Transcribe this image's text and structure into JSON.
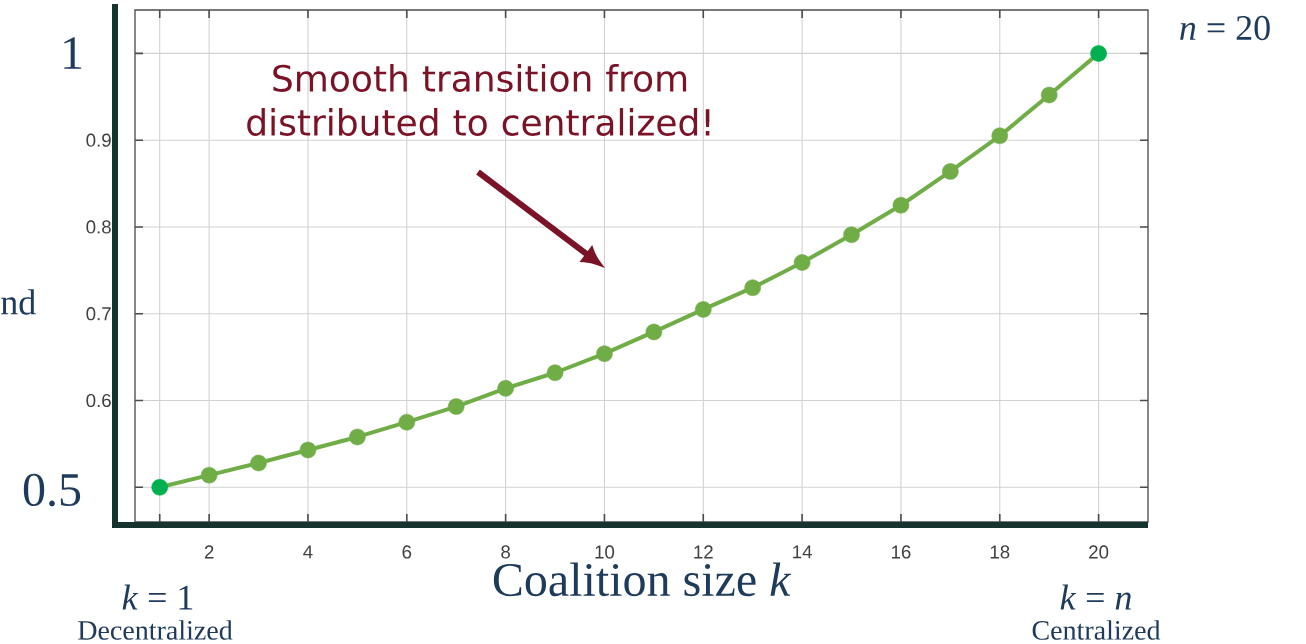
{
  "chart_data": {
    "type": "line",
    "x": [
      1,
      2,
      3,
      4,
      5,
      6,
      7,
      8,
      9,
      10,
      11,
      12,
      13,
      14,
      15,
      16,
      17,
      18,
      19,
      20
    ],
    "series": [
      {
        "color": "#70ad47",
        "colors": [
          "#00b050",
          "#70ad47",
          "#70ad47",
          "#70ad47",
          "#70ad47",
          "#70ad47",
          "#70ad47",
          "#70ad47",
          "#70ad47",
          "#70ad47",
          "#70ad47",
          "#70ad47",
          "#70ad47",
          "#70ad47",
          "#70ad47",
          "#70ad47",
          "#70ad47",
          "#70ad47",
          "#70ad47",
          "#00b050"
        ],
        "values": [
          0.5,
          0.514,
          0.528,
          0.543,
          0.558,
          0.575,
          0.593,
          0.614,
          0.632,
          0.654,
          0.679,
          0.705,
          0.73,
          0.759,
          0.791,
          0.825,
          0.864,
          0.905,
          0.952,
          1.0
        ]
      }
    ],
    "xlabel": "Coalition size *k*",
    "xlim": [
      0.5,
      21
    ],
    "ylim": [
      0.46,
      1.05
    ],
    "xticks": [
      {
        "value": 1,
        "label": null
      },
      2,
      4,
      6,
      8,
      10,
      12,
      14,
      16,
      18,
      20
    ],
    "yticks": [
      {
        "value": 0.5,
        "label": null
      },
      0.6,
      0.7,
      0.8,
      0.9,
      {
        "value": 1,
        "label": null
      }
    ],
    "grid": true,
    "marker": "circle",
    "line_style": "solid",
    "annotations": [
      "Smooth transition from distributed to centralized!",
      "nd",
      "*k* = 1",
      "Decentralized",
      "*k* = *n*",
      "Centralized",
      "*n* = 20",
      "1",
      "0.5"
    ]
  }
}
